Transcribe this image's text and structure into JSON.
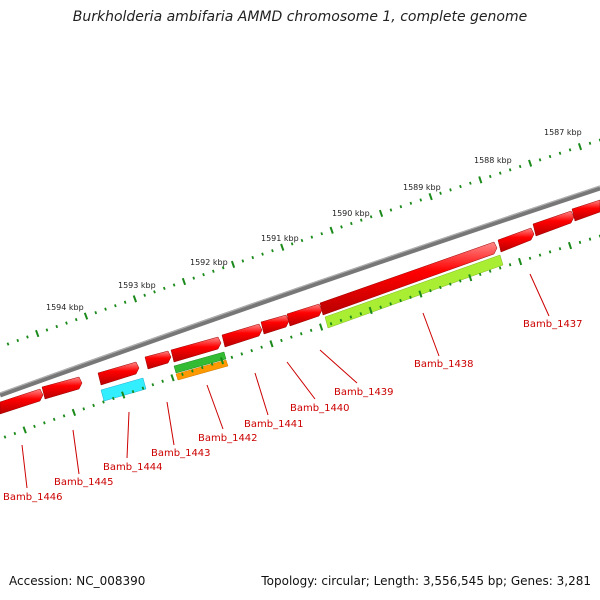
{
  "title": "Burkholderia ambifaria AMMD chromosome 1, complete genome",
  "footer": {
    "accession": "Accession: NC_008390",
    "stats": "Topology: circular; Length: 3,556,545 bp; Genes: 3,281"
  },
  "kbp_ticks": [
    "1587 kbp",
    "1588 kbp",
    "1589 kbp",
    "1590 kbp",
    "1591 kbp",
    "1592 kbp",
    "1593 kbp",
    "1594 kbp"
  ],
  "gene_labels": [
    "Bamb_1437",
    "Bamb_1438",
    "Bamb_1439",
    "Bamb_1440",
    "Bamb_1441",
    "Bamb_1442",
    "Bamb_1443",
    "Bamb_1444",
    "Bamb_1445",
    "Bamb_1446"
  ],
  "colors": {
    "cds": "#ff0000",
    "backbone": "#808080",
    "tick": "#1a8a1a",
    "label_line": "#cc0000",
    "feature_cyan": "#33eeff",
    "feature_lime": "#aaee33",
    "feature_green": "#33bb33",
    "feature_orange": "#ff9900"
  }
}
